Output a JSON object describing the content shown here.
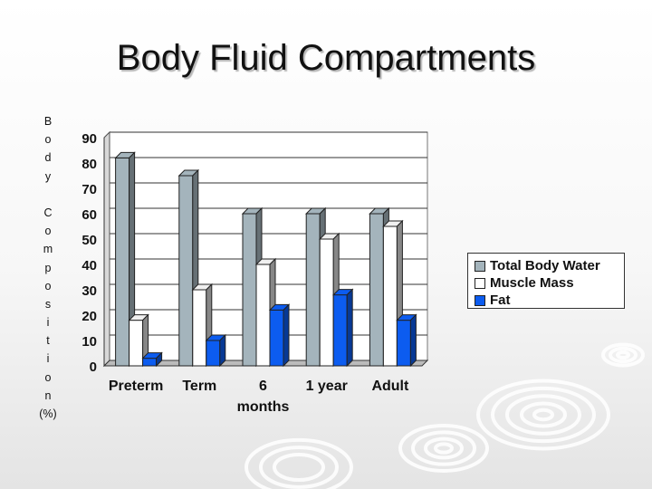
{
  "slide": {
    "title": "Body Fluid Compartments"
  },
  "y_axis_label_letters": [
    "B",
    "o",
    "d",
    "y",
    "",
    "C",
    "o",
    "m",
    "p",
    "o",
    "s",
    "i",
    "t",
    "i",
    "o",
    "n"
  ],
  "y_axis_unit": "(%)",
  "colors": {
    "Total Body Water": "#a4b4bc",
    "Muscle Mass": "#ffffff",
    "Fat": "#0c5cf0"
  },
  "chart_data": {
    "type": "bar",
    "title": "",
    "xlabel": "",
    "ylabel": "Body Composition (%)",
    "categories": [
      "Preterm",
      "Term",
      "6 months",
      "1 year",
      "Adult"
    ],
    "category_lines": [
      [
        "Preterm"
      ],
      [
        "Term"
      ],
      [
        "6",
        "months"
      ],
      [
        "1 year"
      ],
      [
        "Adult"
      ]
    ],
    "series": [
      {
        "name": "Total Body Water",
        "values": [
          82,
          75,
          60,
          60,
          60
        ]
      },
      {
        "name": "Muscle Mass",
        "values": [
          18,
          30,
          40,
          50,
          55
        ]
      },
      {
        "name": "Fat",
        "values": [
          3,
          10,
          22,
          28,
          18
        ]
      }
    ],
    "ylim": [
      0,
      90
    ],
    "yticks": [
      0,
      10,
      20,
      30,
      40,
      50,
      60,
      70,
      80,
      90
    ],
    "grid": true,
    "legend_position": "right",
    "style": "3d-clustered-column"
  }
}
